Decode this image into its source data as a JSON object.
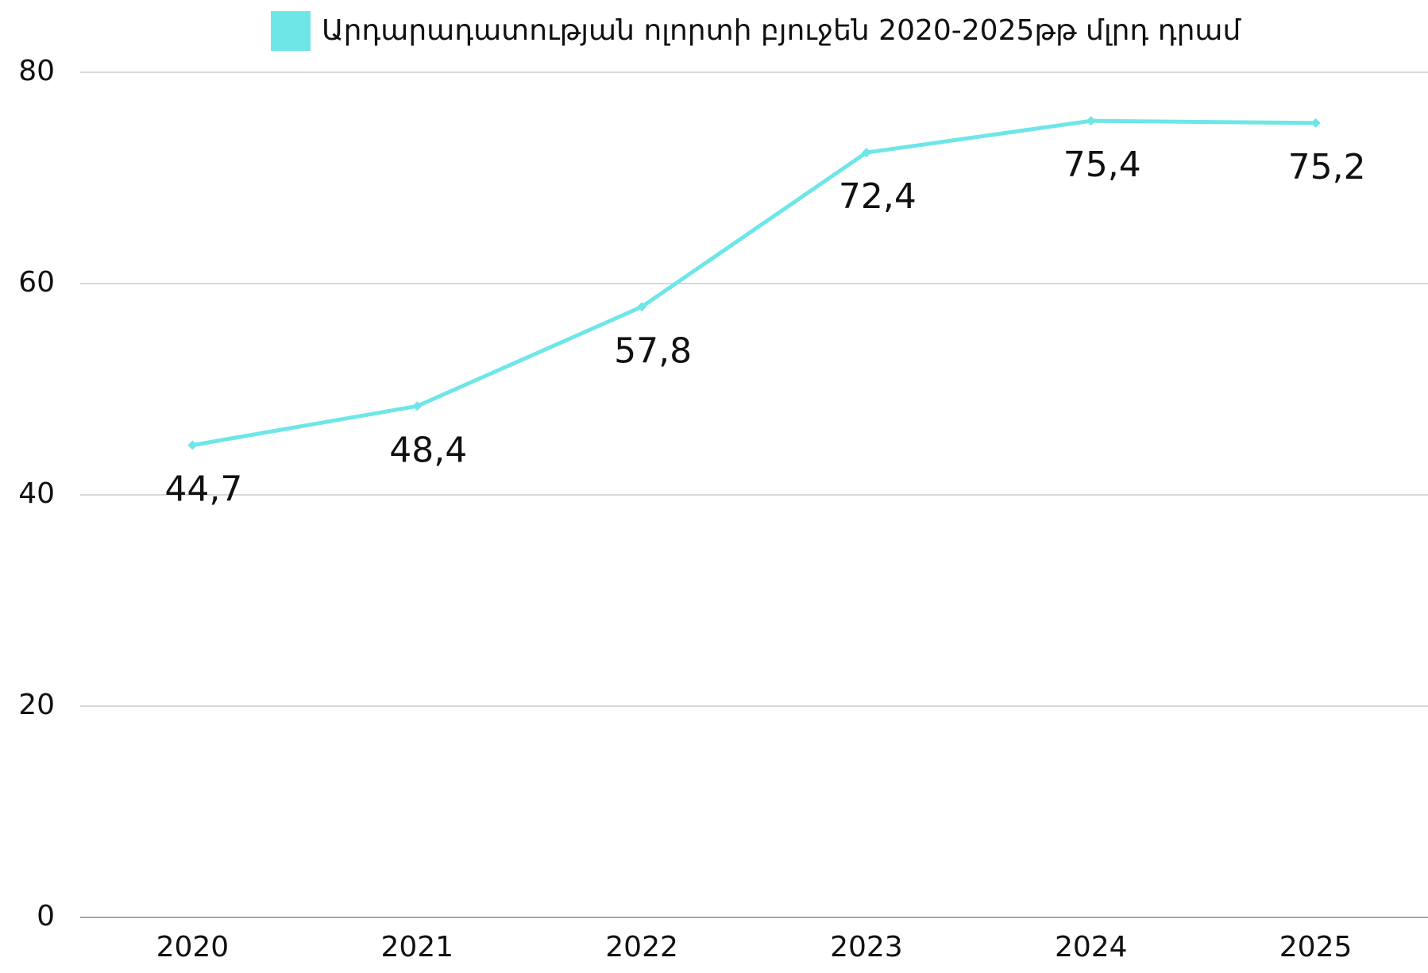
{
  "chart_data": {
    "type": "line",
    "categories": [
      "2020",
      "2021",
      "2022",
      "2023",
      "2024",
      "2025"
    ],
    "series": [
      {
        "name": "Արդարադատության ոլորտի բյուջեն 2020-2025թթ մլրդ դրամ",
        "color": "#6ee6e8",
        "values": [
          44.7,
          48.4,
          57.8,
          72.4,
          75.4,
          75.2
        ],
        "value_labels": [
          "44,7",
          "48,4",
          "57,8",
          "72,4",
          "75,4",
          "75,2"
        ]
      }
    ],
    "ylim": [
      0,
      80
    ],
    "yticks": [
      0,
      20,
      40,
      60,
      80
    ],
    "grid": true,
    "legend": "top"
  }
}
